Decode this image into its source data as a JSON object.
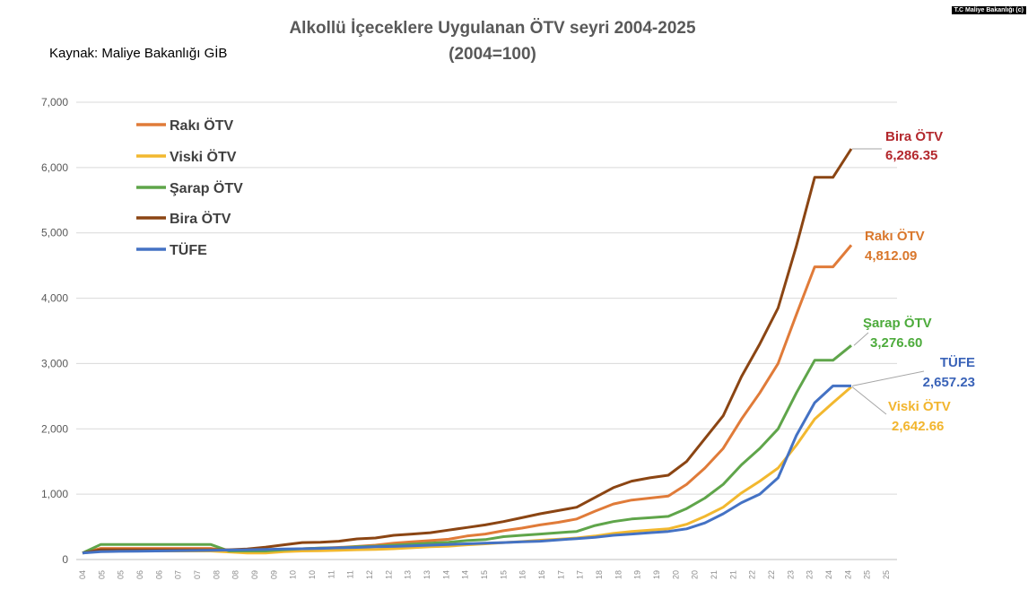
{
  "watermark": "T.C Maliye Bakanlığı (c)",
  "source_note": "Kaynak: Maliye Bakanlığı GİB",
  "chart_data": {
    "type": "line",
    "title": "Alkollü İçeceklere Uygulanan ÖTV seyri 2004-2025",
    "subtitle": "(2004=100)",
    "xlabel": "",
    "ylabel": "",
    "ylim": [
      0,
      7000
    ],
    "yticks": [
      "0",
      "1,000",
      "2,000",
      "3,000",
      "4,000",
      "5,000",
      "6,000",
      "7,000"
    ],
    "grid": "horizontal",
    "legend_position": "top-left",
    "x_tick_labels": [
      "04",
      "05",
      "05",
      "06",
      "06",
      "07",
      "07",
      "08",
      "08",
      "09",
      "09",
      "10",
      "10",
      "11",
      "11",
      "12",
      "12",
      "13",
      "13",
      "14",
      "14",
      "15",
      "15",
      "16",
      "16",
      "17",
      "17",
      "18",
      "18",
      "19",
      "19",
      "20",
      "20",
      "21",
      "21",
      "22",
      "22",
      "23",
      "23",
      "24",
      "24",
      "25",
      "25"
    ],
    "x": [
      2004.0,
      2004.5,
      2005.0,
      2005.5,
      2006.0,
      2006.5,
      2007.0,
      2007.5,
      2008.0,
      2008.5,
      2009.0,
      2009.5,
      2010.0,
      2010.5,
      2011.0,
      2011.5,
      2012.0,
      2012.5,
      2013.0,
      2013.5,
      2014.0,
      2014.5,
      2015.0,
      2015.5,
      2016.0,
      2016.5,
      2017.0,
      2017.5,
      2018.0,
      2018.5,
      2019.0,
      2019.5,
      2020.0,
      2020.5,
      2021.0,
      2021.5,
      2022.0,
      2022.5,
      2023.0,
      2023.5,
      2024.0,
      2024.5,
      2025.0
    ],
    "series": [
      {
        "name": "Rakı ÖTV",
        "color": "#e07b39",
        "values": [
          100,
          170,
          170,
          170,
          170,
          170,
          170,
          170,
          130,
          130,
          130,
          150,
          165,
          175,
          185,
          200,
          220,
          250,
          270,
          290,
          310,
          360,
          390,
          440,
          480,
          530,
          570,
          620,
          740,
          850,
          910,
          940,
          970,
          1150,
          1400,
          1700,
          2150,
          2550,
          3000,
          3750,
          4480,
          4480,
          4812.09
        ]
      },
      {
        "name": "Viski ÖTV",
        "color": "#f2b82f",
        "values": [
          100,
          130,
          130,
          130,
          130,
          130,
          130,
          130,
          115,
          100,
          100,
          120,
          130,
          135,
          140,
          150,
          155,
          165,
          180,
          195,
          205,
          225,
          240,
          260,
          275,
          295,
          310,
          330,
          360,
          400,
          430,
          450,
          470,
          540,
          660,
          800,
          1020,
          1200,
          1400,
          1750,
          2150,
          2400,
          2642.66
        ]
      },
      {
        "name": "Şarap ÖTV",
        "color": "#5fa54a",
        "values": [
          100,
          230,
          230,
          230,
          230,
          230,
          230,
          230,
          130,
          130,
          130,
          150,
          165,
          175,
          180,
          195,
          205,
          220,
          235,
          250,
          265,
          290,
          305,
          350,
          370,
          390,
          410,
          430,
          520,
          580,
          620,
          640,
          660,
          780,
          940,
          1150,
          1450,
          1700,
          2000,
          2550,
          3050,
          3050,
          3276.6
        ]
      },
      {
        "name": "Bira ÖTV",
        "color": "#8b4513",
        "values": [
          100,
          150,
          150,
          150,
          150,
          150,
          150,
          150,
          150,
          160,
          190,
          225,
          260,
          265,
          280,
          315,
          330,
          370,
          390,
          410,
          450,
          490,
          530,
          580,
          640,
          700,
          750,
          800,
          950,
          1100,
          1200,
          1250,
          1290,
          1500,
          1850,
          2200,
          2800,
          3300,
          3850,
          4800,
          5850,
          5850,
          6286.35
        ]
      },
      {
        "name": "TÜFE",
        "color": "#4472c4",
        "values": [
          100,
          120,
          125,
          128,
          131,
          134,
          137,
          140,
          145,
          150,
          155,
          160,
          165,
          170,
          180,
          185,
          195,
          200,
          210,
          220,
          230,
          240,
          250,
          260,
          270,
          280,
          300,
          320,
          340,
          370,
          390,
          410,
          430,
          470,
          560,
          700,
          870,
          1000,
          1250,
          1900,
          2400,
          2657.23,
          2657.23
        ]
      }
    ],
    "end_labels": [
      {
        "name": "Bira ÖTV",
        "value": "6,286.35",
        "color": "#b3282d"
      },
      {
        "name": "Rakı ÖTV",
        "value": "4,812.09",
        "color": "#d9772c"
      },
      {
        "name": "Şarap ÖTV",
        "value": "3,276.60",
        "color": "#4dab3c"
      },
      {
        "name": "TÜFE",
        "value": "2,657.23",
        "color": "#3a63b8"
      },
      {
        "name": "Viski ÖTV",
        "value": "2,642.66",
        "color": "#f2b52e"
      }
    ]
  }
}
